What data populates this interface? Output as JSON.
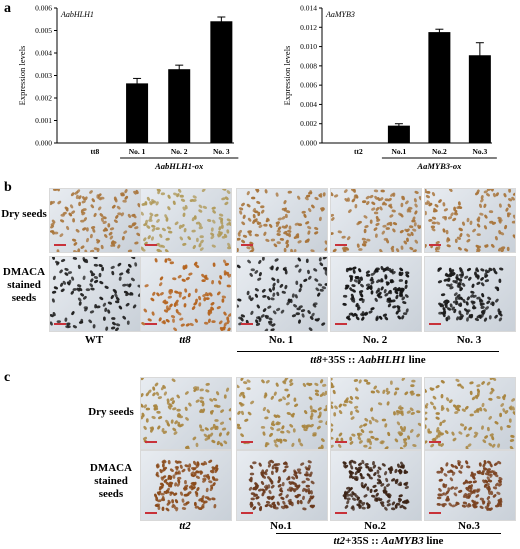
{
  "panels": {
    "a": "a",
    "b": "b",
    "c": "c"
  },
  "chart_data": [
    {
      "type": "bar",
      "title": "AabHLH1",
      "ylabel": "Expression levels",
      "categories": [
        "tt8",
        "No. 1",
        "No. 2",
        "No. 3"
      ],
      "values": [
        0,
        0.00265,
        0.00328,
        0.00541
      ],
      "errors": [
        0,
        0.00022,
        0.00018,
        0.00019
      ],
      "ylim": [
        0,
        0.006
      ],
      "yticks": [
        "0.000",
        "0.001",
        "0.002",
        "0.003",
        "0.004",
        "0.005",
        "0.006"
      ],
      "group_label": "AabHLH1-ox",
      "bar_color": "#000000"
    },
    {
      "type": "bar",
      "title": "AaMYB3",
      "ylabel": "Expression levels",
      "categories": [
        "tt2",
        "No.1",
        "No.2",
        "No.3"
      ],
      "values": [
        0,
        0.0018,
        0.0115,
        0.0091
      ],
      "errors": [
        0,
        0.0002,
        0.0003,
        0.0013
      ],
      "ylim": [
        0,
        0.014
      ],
      "yticks": [
        "0.000",
        "0.002",
        "0.004",
        "0.006",
        "0.008",
        "0.010",
        "0.012",
        "0.014"
      ],
      "group_label": "AaMYB3-ox",
      "bar_color": "#000000"
    }
  ],
  "panel_b": {
    "row_labels": [
      "Dry seeds",
      "DMACA\nstained\nseeds"
    ],
    "col_labels": [
      "WT",
      "tt8",
      "No. 1",
      "No. 2",
      "No. 3"
    ],
    "group_label_prefix": "tt8",
    "group_label_mid": "+35S :: ",
    "group_label_gene": "AabHLH1",
    "group_label_suffix": " line",
    "dry_colors": [
      "#a8743a",
      "#b09a5a",
      "#a8743a",
      "#a8743a",
      "#a8743a"
    ],
    "stained_colors": [
      "#1e1e1e",
      "#b5641f",
      "#1e1e1e",
      "#141414",
      "#1c1c1c"
    ]
  },
  "panel_c": {
    "row_labels": [
      "Dry seeds",
      "DMACA\nstained\nseeds"
    ],
    "col_labels": [
      "tt2",
      "No.1",
      "No.2",
      "No.3"
    ],
    "group_label_prefix": "tt2",
    "group_label_mid": "+35S :: ",
    "group_label_gene": "AaMYB3",
    "group_label_suffix": " line",
    "dry_colors": [
      "#a8843e",
      "#a8843e",
      "#a8843e",
      "#a8843e"
    ],
    "stained_colors": [
      "#8a4a1a",
      "#6a3a1e",
      "#3a2214",
      "#7a4220"
    ]
  }
}
